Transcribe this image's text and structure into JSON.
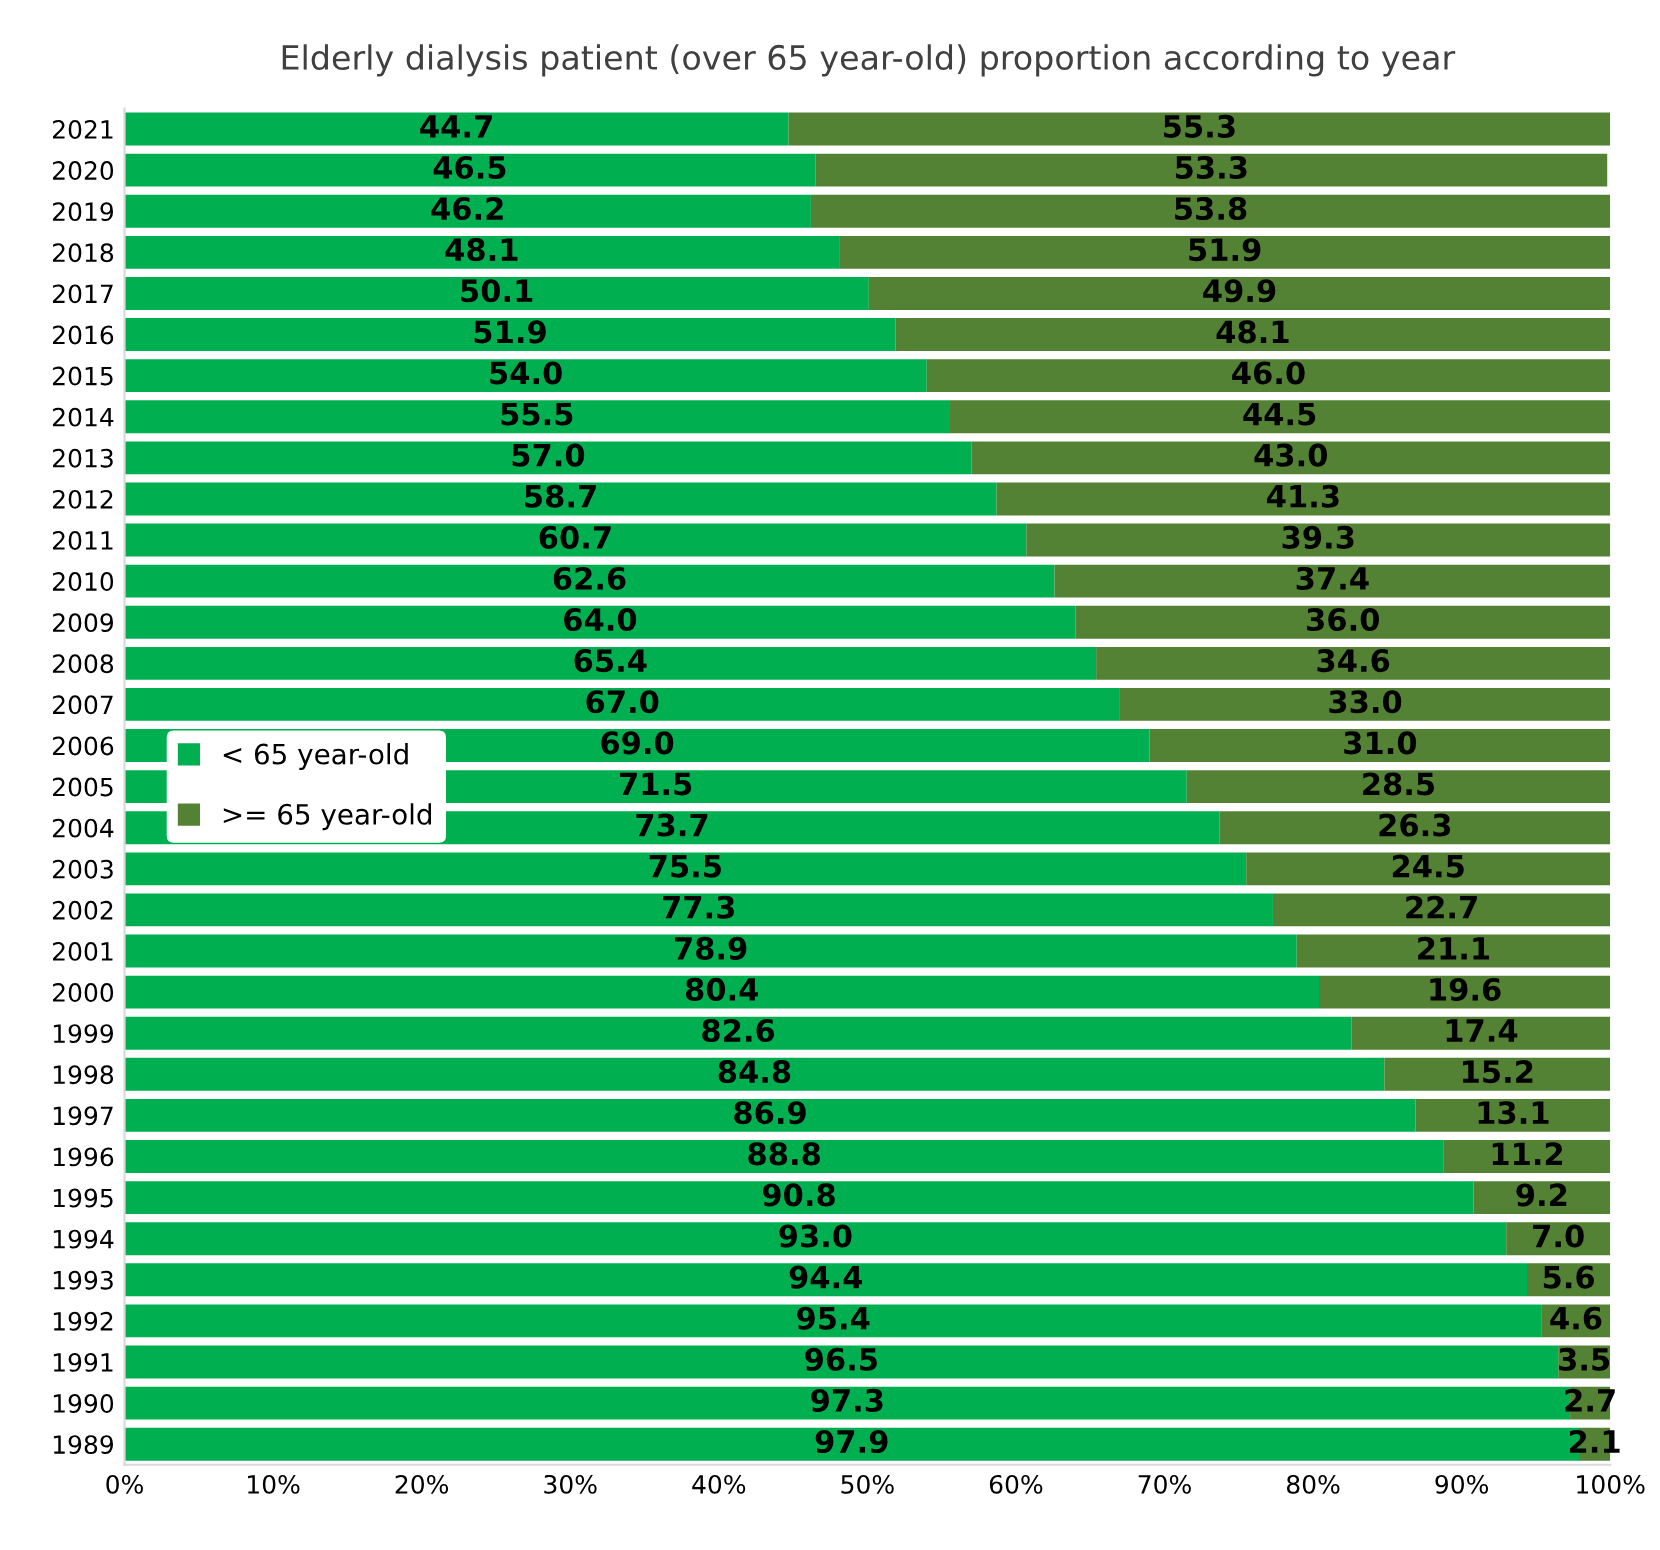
{
  "chart_data": {
    "type": "bar",
    "orientation": "horizontal",
    "stacked": true,
    "title": "Elderly dialysis patient (over 65 year-old) proportion according to year",
    "categories": [
      "2021",
      "2020",
      "2019",
      "2018",
      "2017",
      "2016",
      "2015",
      "2014",
      "2013",
      "2012",
      "2011",
      "2010",
      "2009",
      "2008",
      "2007",
      "2006",
      "2005",
      "2004",
      "2003",
      "2002",
      "2001",
      "2000",
      "1999",
      "1998",
      "1997",
      "1996",
      "1995",
      "1994",
      "1993",
      "1992",
      "1991",
      "1990",
      "1989"
    ],
    "series": [
      {
        "name": "< 65 year-old",
        "color": "#00b050",
        "values": [
          44.7,
          46.5,
          46.2,
          48.1,
          50.1,
          51.9,
          54.0,
          55.5,
          57.0,
          58.7,
          60.7,
          62.6,
          64.0,
          65.4,
          67.0,
          69.0,
          71.5,
          73.7,
          75.5,
          77.3,
          78.9,
          80.4,
          82.6,
          84.8,
          86.9,
          88.8,
          90.8,
          93.0,
          94.4,
          95.4,
          96.5,
          97.3,
          97.9
        ],
        "value_labels": [
          "44.7",
          "46.5",
          "46.2",
          "48.1",
          "50.1",
          "51.9",
          "54.0",
          "55.5",
          "57.0",
          "58.7",
          "60.7",
          "62.6",
          "64.0",
          "65.4",
          "67.0",
          "69.0",
          "71.5",
          "73.7",
          "75.5",
          "77.3",
          "78.9",
          "80.4",
          "82.6",
          "84.8",
          "86.9",
          "88.8",
          "90.8",
          "93.0",
          "94.4",
          "95.4",
          "96.5",
          "97.3",
          "97.9"
        ]
      },
      {
        "name": ">= 65 year-old",
        "color": "#548235",
        "values": [
          55.3,
          53.3,
          53.8,
          51.9,
          49.9,
          48.1,
          46.0,
          44.5,
          43.0,
          41.3,
          39.3,
          37.4,
          36.0,
          34.6,
          33.0,
          31.0,
          28.5,
          26.3,
          24.5,
          22.7,
          21.1,
          19.6,
          17.4,
          15.2,
          13.1,
          11.2,
          9.2,
          7.0,
          5.6,
          4.6,
          3.5,
          2.7,
          2.1
        ],
        "value_labels": [
          "55.3",
          "53.3",
          "53.8",
          "51.9",
          "49.9",
          "48.1",
          "46.0",
          "44.5",
          "43.0",
          "41.3",
          "39.3",
          "37.4",
          "36.0",
          "34.6",
          "33.0",
          "31.0",
          "28.5",
          "26.3",
          "24.5",
          "22.7",
          "21.1",
          "19.6",
          "17.4",
          "15.2",
          "13.1",
          "11.2",
          "9.2",
          "7.0",
          "5.6",
          "4.6",
          "3.5",
          "2.7",
          "2.1"
        ]
      }
    ],
    "xlim": [
      0,
      100
    ],
    "xticks": [
      {
        "value": 0,
        "label": "0%"
      },
      {
        "value": 10,
        "label": "10%"
      },
      {
        "value": 20,
        "label": "20%"
      },
      {
        "value": 30,
        "label": "30%"
      },
      {
        "value": 40,
        "label": "40%"
      },
      {
        "value": 50,
        "label": "50%"
      },
      {
        "value": 60,
        "label": "60%"
      },
      {
        "value": 70,
        "label": "70%"
      },
      {
        "value": 80,
        "label": "80%"
      },
      {
        "value": 90,
        "label": "90%"
      },
      {
        "value": 100,
        "label": "100%"
      }
    ],
    "legend": "center left"
  }
}
